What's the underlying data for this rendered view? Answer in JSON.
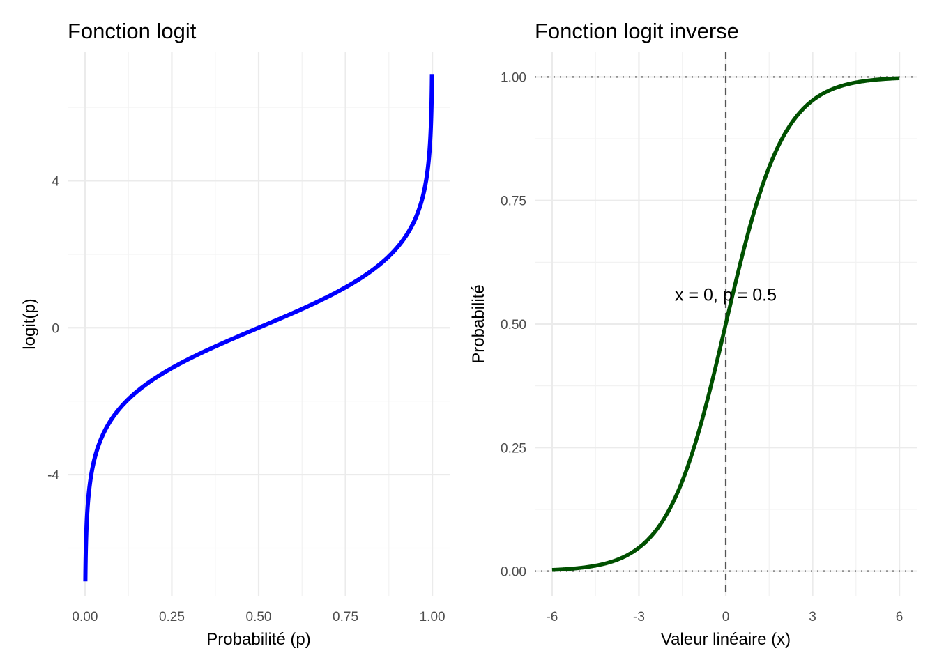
{
  "chart_data": [
    {
      "type": "line",
      "title": "Fonction logit",
      "xlabel": "Probabilité (p)",
      "ylabel": "logit(p)",
      "xlim": [
        -0.05,
        1.05
      ],
      "ylim": [
        -7.3,
        7.5
      ],
      "x_ticks": [
        0,
        0.25,
        0.5,
        0.75,
        1
      ],
      "x_tick_labels": [
        "0.00",
        "0.25",
        "0.50",
        "0.75",
        "1.00"
      ],
      "y_ticks": [
        -4,
        0,
        4
      ],
      "y_tick_labels": [
        "-4",
        "0",
        "4"
      ],
      "grid": true,
      "series": [
        {
          "function": "logit(p) = ln(p / (1 - p))",
          "x_range": [
            0.001,
            0.999
          ],
          "color": "#0000ff",
          "sample_points": [
            {
              "x": 0.001,
              "y": -6.91
            },
            {
              "x": 0.01,
              "y": -4.6
            },
            {
              "x": 0.1,
              "y": -2.2
            },
            {
              "x": 0.25,
              "y": -1.1
            },
            {
              "x": 0.5,
              "y": 0
            },
            {
              "x": 0.75,
              "y": 1.1
            },
            {
              "x": 0.9,
              "y": 2.2
            },
            {
              "x": 0.99,
              "y": 4.6
            },
            {
              "x": 0.999,
              "y": 6.91
            }
          ]
        }
      ]
    },
    {
      "type": "line",
      "title": "Fonction logit inverse",
      "xlabel": "Valeur linéaire (x)",
      "ylabel": "Probabilité",
      "xlim": [
        -6.6,
        6.6
      ],
      "ylim": [
        -0.05,
        1.05
      ],
      "x_ticks": [
        -6,
        -3,
        0,
        3,
        6
      ],
      "x_tick_labels": [
        "-6",
        "-3",
        "0",
        "3",
        "6"
      ],
      "y_ticks": [
        0,
        0.25,
        0.5,
        0.75,
        1
      ],
      "y_tick_labels": [
        "0.00",
        "0.25",
        "0.50",
        "0.75",
        "1.00"
      ],
      "grid": true,
      "series": [
        {
          "function": "p = 1 / (1 + exp(-x))",
          "x_range": [
            -6,
            6
          ],
          "color": "#005000",
          "sample_points": [
            {
              "x": -6,
              "y": 0.0025
            },
            {
              "x": -3,
              "y": 0.047
            },
            {
              "x": -1,
              "y": 0.269
            },
            {
              "x": 0,
              "y": 0.5
            },
            {
              "x": 1,
              "y": 0.731
            },
            {
              "x": 3,
              "y": 0.953
            },
            {
              "x": 6,
              "y": 0.9975
            }
          ]
        }
      ],
      "reference_lines": [
        {
          "orientation": "horizontal",
          "value": 0,
          "style": "dotted",
          "color": "#555555"
        },
        {
          "orientation": "horizontal",
          "value": 1,
          "style": "dotted",
          "color": "#555555"
        },
        {
          "orientation": "vertical",
          "value": 0,
          "style": "dashed",
          "color": "#555555"
        }
      ],
      "annotations": [
        {
          "text": "x = 0, p = 0.5",
          "x": 0,
          "y": 0.56
        }
      ]
    }
  ]
}
